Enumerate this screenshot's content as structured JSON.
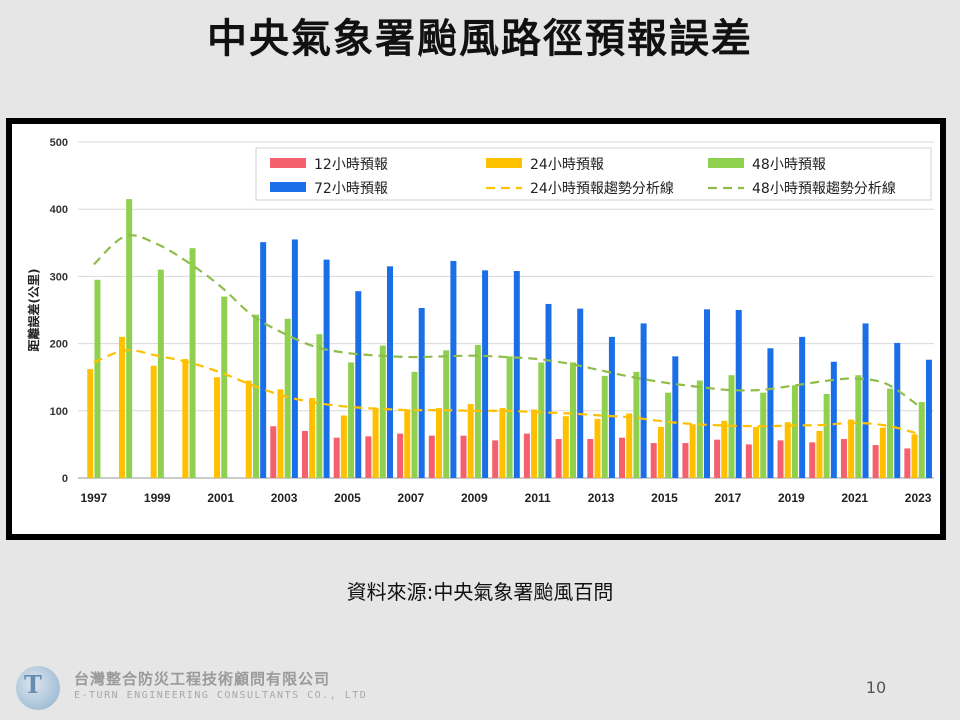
{
  "slide": {
    "title": "中央氣象署颱風路徑預報誤差",
    "source": "資料來源:中央氣象署颱風百問",
    "page_number": "10"
  },
  "company": {
    "name_zh": "台灣整合防災工程技術顧問有限公司",
    "name_en": "E-TURN ENGINEERING CONSULTANTS CO., LTD"
  },
  "chart_data": {
    "type": "bar",
    "ylabel": "距離誤差(公里)",
    "ylim": [
      0,
      500
    ],
    "yticks": [
      0,
      100,
      200,
      300,
      400,
      500
    ],
    "grid": true,
    "legend_position": "top-right",
    "x": [
      1997,
      1998,
      1999,
      2000,
      2001,
      2002,
      2003,
      2004,
      2005,
      2006,
      2007,
      2008,
      2009,
      2010,
      2011,
      2012,
      2013,
      2014,
      2015,
      2016,
      2017,
      2018,
      2019,
      2020,
      2021,
      2022,
      2023
    ],
    "xtick_labels": [
      "1997",
      "1999",
      "2001",
      "2003",
      "2005",
      "2007",
      "2009",
      "2011",
      "2013",
      "2015",
      "2017",
      "2019",
      "2021",
      "2023"
    ],
    "series": [
      {
        "name": "12小時預報",
        "color": "#f4606b",
        "values": [
          null,
          null,
          null,
          null,
          null,
          null,
          77,
          70,
          60,
          62,
          66,
          63,
          63,
          56,
          66,
          58,
          58,
          60,
          52,
          52,
          57,
          50,
          56,
          53,
          58,
          49,
          44
        ]
      },
      {
        "name": "24小時預報",
        "color": "#ffc000",
        "values": [
          162,
          210,
          167,
          177,
          150,
          145,
          132,
          119,
          93,
          104,
          102,
          104,
          110,
          104,
          102,
          92,
          88,
          96,
          76,
          80,
          85,
          76,
          83,
          70,
          87,
          75,
          65
        ]
      },
      {
        "name": "48小時預報",
        "color": "#8fd14f",
        "values": [
          295,
          415,
          310,
          342,
          270,
          243,
          237,
          214,
          172,
          197,
          158,
          190,
          198,
          181,
          172,
          172,
          152,
          158,
          127,
          145,
          153,
          127,
          138,
          125,
          153,
          133,
          113
        ]
      },
      {
        "name": "72小時預報",
        "color": "#1a6ee8",
        "values": [
          null,
          null,
          null,
          null,
          null,
          351,
          355,
          325,
          278,
          315,
          253,
          323,
          309,
          308,
          259,
          252,
          210,
          230,
          181,
          251,
          250,
          193,
          210,
          173,
          230,
          201,
          176
        ]
      }
    ],
    "trend_lines": [
      {
        "name": "24小時預報趨勢分析線",
        "color": "#ffc000",
        "values": [
          172,
          190,
          182,
          172,
          157,
          138,
          122,
          112,
          106,
          103,
          101,
          101,
          100,
          100,
          98,
          96,
          93,
          90,
          84,
          80,
          78,
          77,
          78,
          79,
          82,
          78,
          66
        ]
      },
      {
        "name": "48小時預報趨勢分析線",
        "color": "#8fbc4a",
        "values": [
          318,
          360,
          348,
          320,
          285,
          242,
          215,
          195,
          186,
          182,
          180,
          181,
          182,
          180,
          177,
          170,
          160,
          150,
          142,
          136,
          131,
          131,
          137,
          144,
          148,
          140,
          108
        ]
      }
    ]
  }
}
